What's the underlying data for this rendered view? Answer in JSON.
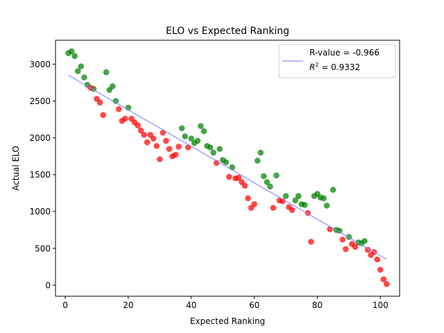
{
  "chart_data": {
    "type": "scatter",
    "title": "ELO vs Expected Ranking",
    "xlabel": "Expected Ranking",
    "ylabel": "Actual ELO",
    "xlim": [
      -3.1,
      106.1
    ],
    "ylim": [
      -150,
      3325
    ],
    "x_ticks": [
      0,
      20,
      40,
      60,
      80,
      100
    ],
    "y_ticks": [
      0,
      500,
      1000,
      1500,
      2000,
      2500,
      3000
    ],
    "grid": false,
    "legend_position": "top-right",
    "legend": {
      "line_label": "R-value = -0.966",
      "r2_label_main": "R",
      "r2_label_sup": "2",
      "r2_label_rest": " = 0.9332"
    },
    "fit_line": {
      "color": "#8888ff",
      "x": [
        1,
        102
      ],
      "y": [
        2850,
        350
      ]
    },
    "series": [
      {
        "color": "#008000",
        "points": [
          [
            1,
            3150
          ],
          [
            2,
            3175
          ],
          [
            3,
            3110
          ],
          [
            4,
            2905
          ],
          [
            5,
            2970
          ],
          [
            6,
            2820
          ],
          [
            7,
            2720
          ],
          [
            9,
            2665
          ],
          [
            13,
            2890
          ],
          [
            14,
            2650
          ],
          [
            15,
            2700
          ],
          [
            16,
            2500
          ],
          [
            20,
            2410
          ],
          [
            37,
            2130
          ],
          [
            38,
            2020
          ],
          [
            40,
            1990
          ],
          [
            41,
            1930
          ],
          [
            42,
            1960
          ],
          [
            43,
            2160
          ],
          [
            44,
            2090
          ],
          [
            45,
            1890
          ],
          [
            46,
            1870
          ],
          [
            47,
            1800
          ],
          [
            49,
            1850
          ],
          [
            50,
            1700
          ],
          [
            51,
            1670
          ],
          [
            53,
            1600
          ],
          [
            61,
            1690
          ],
          [
            62,
            1800
          ],
          [
            63,
            1480
          ],
          [
            64,
            1400
          ],
          [
            65,
            1340
          ],
          [
            67,
            1490
          ],
          [
            70,
            1210
          ],
          [
            73,
            1150
          ],
          [
            74,
            1210
          ],
          [
            75,
            1100
          ],
          [
            76,
            1090
          ],
          [
            79,
            1210
          ],
          [
            80,
            1240
          ],
          [
            81,
            1190
          ],
          [
            82,
            1180
          ],
          [
            83,
            1080
          ],
          [
            85,
            1295
          ],
          [
            86,
            750
          ],
          [
            87,
            740
          ],
          [
            90,
            655
          ],
          [
            93,
            580
          ],
          [
            94,
            570
          ],
          [
            95,
            600
          ]
        ]
      },
      {
        "color": "#ff0000",
        "points": [
          [
            8,
            2680
          ],
          [
            10,
            2530
          ],
          [
            11,
            2480
          ],
          [
            12,
            2310
          ],
          [
            17,
            2390
          ],
          [
            18,
            2230
          ],
          [
            19,
            2260
          ],
          [
            21,
            2260
          ],
          [
            22,
            2210
          ],
          [
            23,
            2170
          ],
          [
            24,
            2100
          ],
          [
            25,
            2040
          ],
          [
            26,
            1940
          ],
          [
            27,
            2040
          ],
          [
            28,
            1990
          ],
          [
            29,
            1890
          ],
          [
            30,
            1710
          ],
          [
            31,
            2070
          ],
          [
            32,
            1960
          ],
          [
            33,
            1850
          ],
          [
            34,
            1750
          ],
          [
            35,
            1770
          ],
          [
            36,
            1880
          ],
          [
            39,
            1870
          ],
          [
            48,
            1660
          ],
          [
            52,
            1470
          ],
          [
            54,
            1450
          ],
          [
            55,
            1460
          ],
          [
            56,
            1400
          ],
          [
            57,
            1350
          ],
          [
            58,
            1180
          ],
          [
            59,
            1050
          ],
          [
            60,
            1100
          ],
          [
            66,
            1050
          ],
          [
            68,
            1150
          ],
          [
            69,
            1140
          ],
          [
            71,
            1060
          ],
          [
            72,
            1020
          ],
          [
            77,
            980
          ],
          [
            78,
            590
          ],
          [
            84,
            760
          ],
          [
            88,
            620
          ],
          [
            89,
            490
          ],
          [
            91,
            560
          ],
          [
            92,
            520
          ],
          [
            96,
            480
          ],
          [
            97,
            410
          ],
          [
            98,
            450
          ],
          [
            99,
            350
          ],
          [
            100,
            210
          ],
          [
            101,
            80
          ],
          [
            102,
            15
          ]
        ]
      }
    ]
  }
}
